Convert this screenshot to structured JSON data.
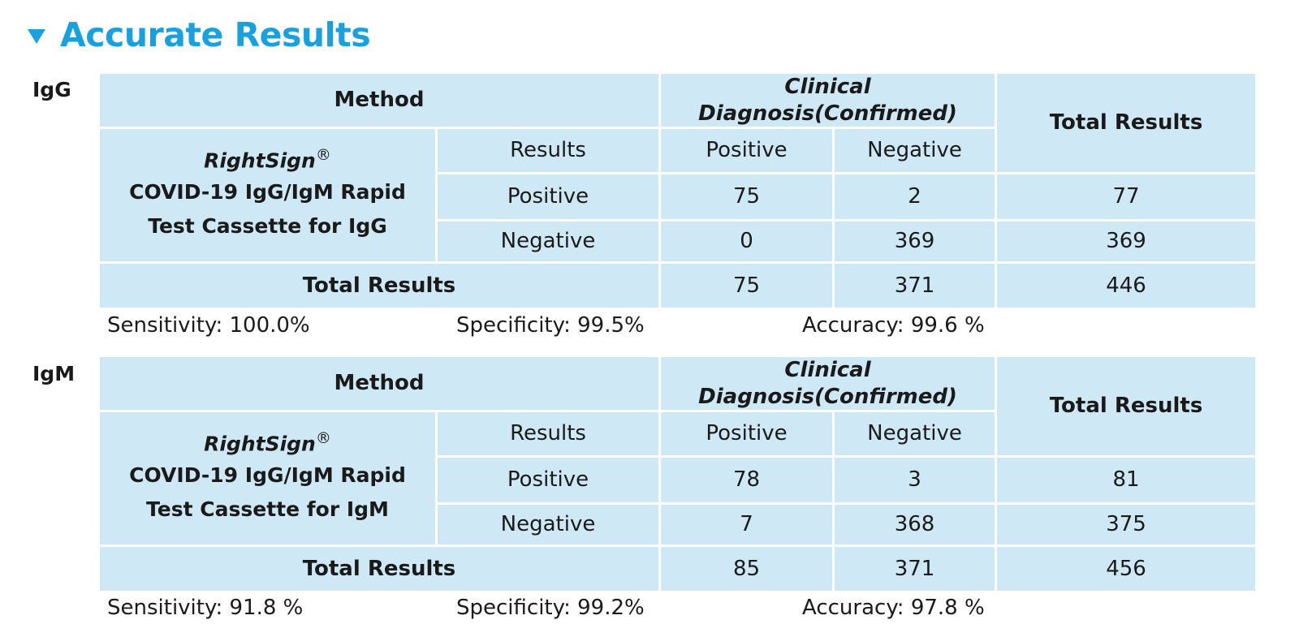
{
  "title": "Accurate Results",
  "colors": {
    "accent": "#1aa0dc",
    "cell_bg": "#cfe8f6"
  },
  "icons": {
    "header_marker": "triangle-down-icon"
  },
  "tables": [
    {
      "label": "IgG",
      "method_header": "Method",
      "clinical_header": "Clinical Diagnosis(Confirmed)",
      "total_header": "Total Results",
      "product_brand": "RightSign",
      "product_mark": "®",
      "product_line1": "COVID-19 IgG/IgM Rapid",
      "product_line2": "Test Cassette for IgG",
      "results_label": "Results",
      "positive_label": "Positive",
      "negative_label": "Negative",
      "row_positive": {
        "label": "Positive",
        "pos": "75",
        "neg": "2",
        "total": "77"
      },
      "row_negative": {
        "label": "Negative",
        "pos": "0",
        "neg": "369",
        "total": "369"
      },
      "row_total": {
        "label": "Total Results",
        "pos": "75",
        "neg": "371",
        "total": "446"
      },
      "sensitivity": "Sensitivity: 100.0%",
      "specificity": "Specificity: 99.5%",
      "accuracy": "Accuracy: 99.6 %"
    },
    {
      "label": "IgM",
      "method_header": "Method",
      "clinical_header": "Clinical Diagnosis(Confirmed)",
      "total_header": "Total Results",
      "product_brand": "RightSign",
      "product_mark": "®",
      "product_line1": "COVID-19 IgG/IgM Rapid",
      "product_line2": "Test Cassette for IgM",
      "results_label": "Results",
      "positive_label": "Positive",
      "negative_label": "Negative",
      "row_positive": {
        "label": "Positive",
        "pos": "78",
        "neg": "3",
        "total": "81"
      },
      "row_negative": {
        "label": "Negative",
        "pos": "7",
        "neg": "368",
        "total": "375"
      },
      "row_total": {
        "label": "Total Results",
        "pos": "85",
        "neg": "371",
        "total": "456"
      },
      "sensitivity": "Sensitivity: 91.8 %",
      "specificity": "Specificity: 99.2%",
      "accuracy": "Accuracy: 97.8 %"
    }
  ]
}
